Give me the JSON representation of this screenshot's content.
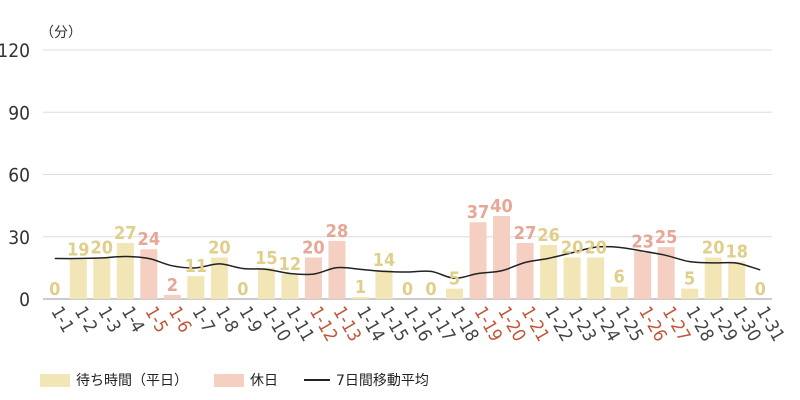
{
  "unit_label": "（分）",
  "colors": {
    "weekday": "#f2e6b6",
    "holiday": "#f4cfc2",
    "weekday_label": "#e0cf8a",
    "holiday_label": "#e8a796",
    "holiday_tick": "#c0563a",
    "weekday_tick": "#444444",
    "line": "#222222",
    "grid": "#dddddd"
  },
  "chart_data": {
    "type": "bar",
    "ylim": [
      0,
      120
    ],
    "yticks": [
      "0",
      "30",
      "60",
      "90",
      "120"
    ],
    "grid": true,
    "legend_position": "bottom-left",
    "categories": [
      "1-1",
      "1-2",
      "1-3",
      "1-4",
      "1-5",
      "1-6",
      "1-7",
      "1-8",
      "1-9",
      "1-10",
      "1-11",
      "1-12",
      "1-13",
      "1-14",
      "1-15",
      "1-16",
      "1-17",
      "1-18",
      "1-19",
      "1-20",
      "1-21",
      "1-22",
      "1-23",
      "1-24",
      "1-25",
      "1-26",
      "1-27",
      "1-28",
      "1-29",
      "1-30",
      "1-31"
    ],
    "values": [
      0,
      19,
      20,
      27,
      24,
      2,
      11,
      20,
      0,
      15,
      12,
      20,
      28,
      1,
      14,
      0,
      0,
      5,
      37,
      40,
      27,
      26,
      20,
      20,
      6,
      23,
      25,
      5,
      20,
      18,
      0
    ],
    "holiday": [
      false,
      false,
      false,
      false,
      true,
      true,
      false,
      false,
      false,
      false,
      false,
      true,
      true,
      false,
      false,
      false,
      false,
      false,
      true,
      true,
      true,
      false,
      false,
      false,
      false,
      true,
      true,
      false,
      false,
      false,
      false
    ],
    "moving_average": [
      19.5,
      19.5,
      19.8,
      20.5,
      19.5,
      16.0,
      15.0,
      16.9,
      14.7,
      14.3,
      12.3,
      12.0,
      15.1,
      14.3,
      13.3,
      13.0,
      13.3,
      10.0,
      12.3,
      13.6,
      17.6,
      19.6,
      22.3,
      25.0,
      24.9,
      23.1,
      21.0,
      18.0,
      17.4,
      17.3,
      14.0
    ],
    "series": [
      {
        "name": "待ち時間（平日）"
      },
      {
        "name": "休日"
      },
      {
        "name": "7日間移動平均"
      }
    ]
  }
}
